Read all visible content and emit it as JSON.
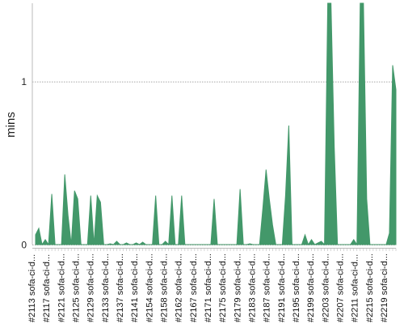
{
  "chart_data": {
    "type": "area",
    "ylabel": "mins",
    "y_ticks": [
      0,
      1
    ],
    "ylim": [
      0,
      1.48
    ],
    "grid": "horizontal-dotted",
    "color": "#43986a",
    "x_tick_labels": [
      "#2113 sofa-ci-d...",
      "#2117 sofa-ci-d...",
      "#2121 sofa-ci-d...",
      "#2125 sofa-ci-d...",
      "#2129 sofa-ci-d...",
      "#2133 sofa-ci-d...",
      "#2137 sofa-ci-d...",
      "#2141 sofa-ci-d...",
      "#2154 sofa-ci-d...",
      "#2158 sofa-ci-d...",
      "#2162 sofa-ci-d...",
      "#2167 sofa-ci-d...",
      "#2171 sofa-ci-d...",
      "#2175 sofa-ci-d...",
      "#2179 sofa-ci-d...",
      "#2183 sofa-ci-d...",
      "#2187 sofa-ci-d...",
      "#2191 sofa-ci-d...",
      "#2195 sofa-ci-d...",
      "#2199 sofa-ci-d...",
      "#2203 sofa-ci-d...",
      "#2207 sofa-ci-d...",
      "#2211 sofa-ci-d...",
      "#2215 sofa-ci-d...",
      "#2219 sofa-ci-d..."
    ],
    "values": [
      0.06,
      0.1,
      0,
      0.03,
      0,
      0.31,
      0,
      0,
      0,
      0.43,
      0.18,
      0,
      0.33,
      0.28,
      0,
      0,
      0,
      0.3,
      0,
      0.3,
      0.26,
      0,
      0,
      0.005,
      0,
      0.02,
      0,
      0,
      0.01,
      0,
      0,
      0.01,
      0,
      0.015,
      0,
      0,
      0,
      0.3,
      0,
      0,
      0.02,
      0,
      0.3,
      0,
      0,
      0.3,
      0,
      0,
      0,
      0,
      0,
      0,
      0,
      0,
      0,
      0.28,
      0,
      0,
      0,
      0,
      0,
      0,
      0,
      0.34,
      0,
      0,
      0.005,
      0,
      0,
      0,
      0.22,
      0.46,
      0.28,
      0.12,
      0,
      0,
      0,
      0.3,
      0.73,
      0,
      0,
      0,
      0,
      0.06,
      0,
      0.03,
      0,
      0.01,
      0.02,
      0,
      1.5,
      1.5,
      0.6,
      0,
      0,
      0,
      0,
      0,
      0.03,
      0,
      1.5,
      1.5,
      0.28,
      0,
      0,
      0,
      0,
      0,
      0,
      0.07,
      1.1,
      0.95
    ]
  }
}
